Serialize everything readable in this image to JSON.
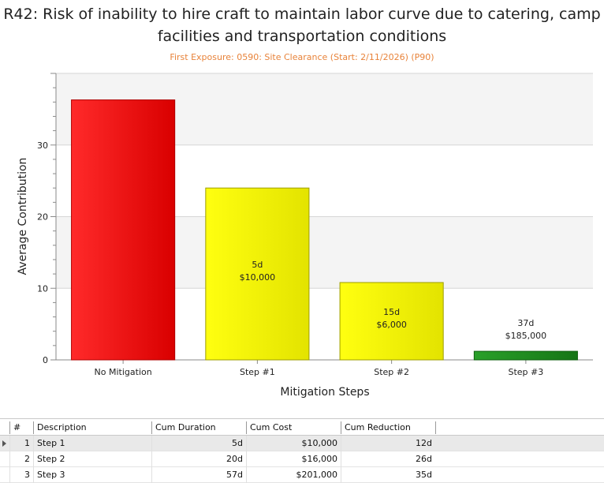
{
  "title": "R42: Risk of inability to hire craft to maintain labor curve due to catering, camp facilities and transportation conditions",
  "title_line1": "R42: Risk of inability to hire craft to maintain labor curve due to catering, camp",
  "title_line2": "facilities and transportation conditions",
  "subtitle": "First Exposure: 0590: Site Clearance (Start: 2/11/2026) (P90)",
  "colors": {
    "accent_subtitle": "#e8833a",
    "no_mitigation": "#ff1a1a",
    "step": "#ffff00",
    "final_step": "#1f8f1f"
  },
  "chart_data": {
    "type": "bar",
    "categories": [
      "No Mitigation",
      "Step #1",
      "Step #2",
      "Step #3"
    ],
    "values": [
      36.3,
      24,
      10.8,
      1.2
    ],
    "bar_labels": [
      [],
      [
        "5d",
        "$10,000"
      ],
      [
        "15d",
        "$6,000"
      ],
      [
        "37d",
        "$185,000"
      ]
    ],
    "bar_colors": [
      "#ff1a1a",
      "#ffff00",
      "#ffff00",
      "#1f8f1f"
    ],
    "xlabel": "Mitigation Steps",
    "ylabel": "Average Contribution",
    "ylim": [
      0,
      40
    ],
    "yticks": [
      0,
      10,
      20,
      30
    ],
    "grid": true
  },
  "table": {
    "columns": [
      "#",
      "Description",
      "Cum Duration",
      "Cum Cost",
      "Cum Reduction"
    ],
    "rows": [
      {
        "num": "1",
        "description": "Step 1",
        "cum_duration": "5d",
        "cum_cost": "$10,000",
        "cum_reduction": "12d",
        "selected": true
      },
      {
        "num": "2",
        "description": "Step 2",
        "cum_duration": "20d",
        "cum_cost": "$16,000",
        "cum_reduction": "26d",
        "selected": false
      },
      {
        "num": "3",
        "description": "Step 3",
        "cum_duration": "57d",
        "cum_cost": "$201,000",
        "cum_reduction": "35d",
        "selected": false
      }
    ]
  }
}
